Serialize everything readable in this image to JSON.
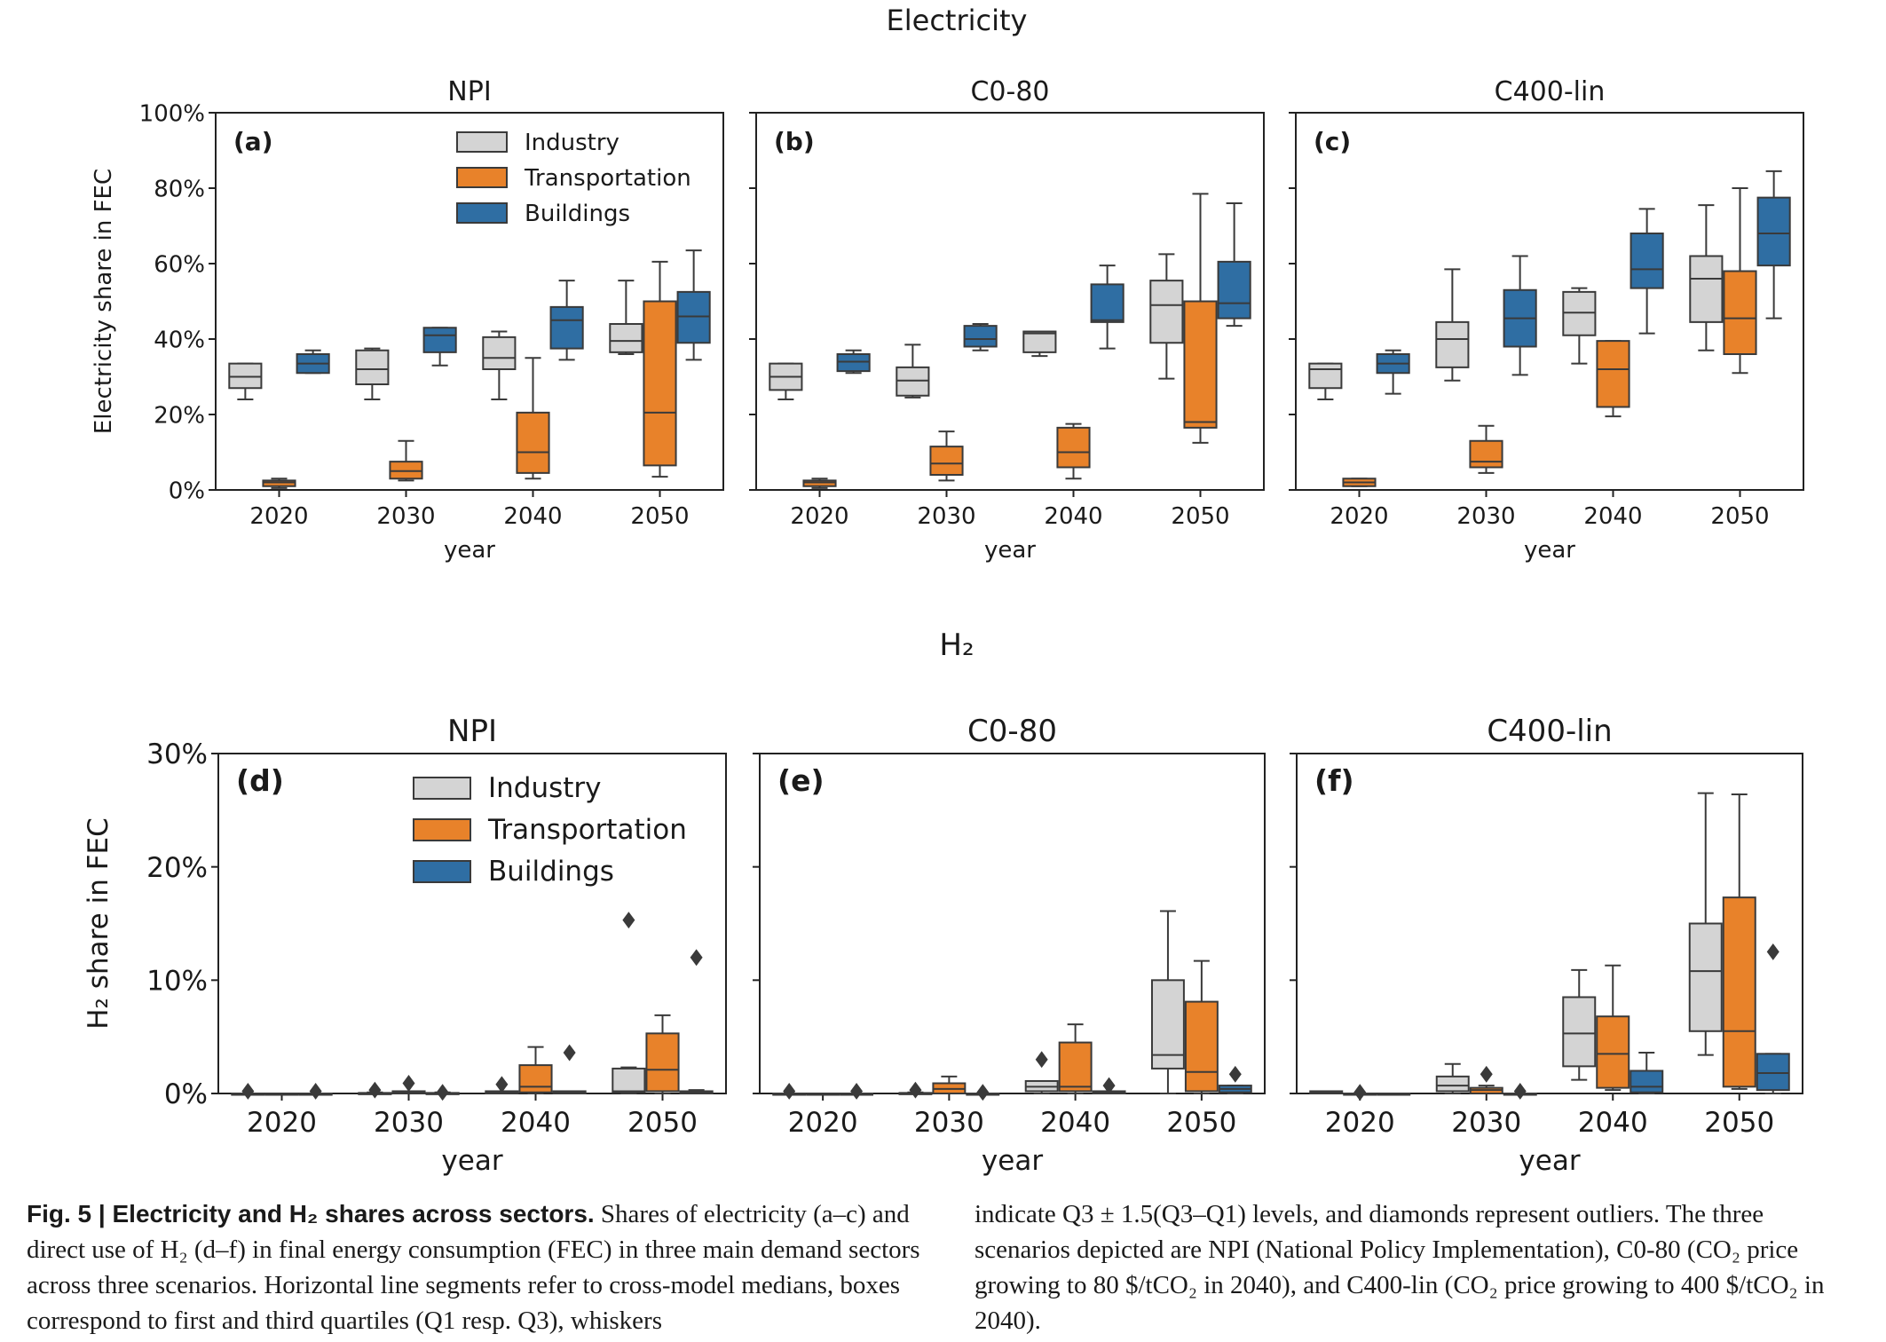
{
  "figure": {
    "top_title": "Electricity",
    "bottom_title": "H₂"
  },
  "legend_entries": [
    "Industry",
    "Transportation",
    "Buildings"
  ],
  "colors": {
    "Industry": "#d4d4d4",
    "Transportation": "#e8822a",
    "Buildings": "#2f6ea3"
  },
  "chart_data": [
    {
      "type": "box",
      "panel": "(a)",
      "title": "NPI",
      "xlabel": "year",
      "ylabel": "Electricity share in FEC",
      "categories": [
        "2020",
        "2030",
        "2040",
        "2050"
      ],
      "ylim": [
        0,
        1
      ],
      "yticks": [
        "0%",
        "20%",
        "40%",
        "60%",
        "80%",
        "100%"
      ],
      "legend": "upper-center",
      "series": [
        {
          "name": "Industry",
          "boxes": [
            {
              "wlo": 0.24,
              "q1": 0.27,
              "med": 0.3,
              "q3": 0.335,
              "whi": 0.335,
              "outliers": []
            },
            {
              "wlo": 0.24,
              "q1": 0.28,
              "med": 0.32,
              "q3": 0.37,
              "whi": 0.375,
              "outliers": []
            },
            {
              "wlo": 0.24,
              "q1": 0.32,
              "med": 0.35,
              "q3": 0.405,
              "whi": 0.42,
              "outliers": []
            },
            {
              "wlo": 0.36,
              "q1": 0.365,
              "med": 0.395,
              "q3": 0.44,
              "whi": 0.555,
              "outliers": []
            }
          ]
        },
        {
          "name": "Transportation",
          "boxes": [
            {
              "wlo": 0.005,
              "q1": 0.01,
              "med": 0.02,
              "q3": 0.025,
              "whi": 0.03,
              "outliers": []
            },
            {
              "wlo": 0.025,
              "q1": 0.03,
              "med": 0.05,
              "q3": 0.075,
              "whi": 0.13,
              "outliers": []
            },
            {
              "wlo": 0.03,
              "q1": 0.045,
              "med": 0.1,
              "q3": 0.205,
              "whi": 0.35,
              "outliers": []
            },
            {
              "wlo": 0.035,
              "q1": 0.065,
              "med": 0.205,
              "q3": 0.5,
              "whi": 0.605,
              "outliers": []
            }
          ]
        },
        {
          "name": "Buildings",
          "boxes": [
            {
              "wlo": 0.31,
              "q1": 0.31,
              "med": 0.335,
              "q3": 0.36,
              "whi": 0.37,
              "outliers": []
            },
            {
              "wlo": 0.33,
              "q1": 0.365,
              "med": 0.41,
              "q3": 0.43,
              "whi": 0.43,
              "outliers": []
            },
            {
              "wlo": 0.345,
              "q1": 0.375,
              "med": 0.45,
              "q3": 0.485,
              "whi": 0.555,
              "outliers": []
            },
            {
              "wlo": 0.345,
              "q1": 0.39,
              "med": 0.46,
              "q3": 0.525,
              "whi": 0.635,
              "outliers": []
            }
          ]
        }
      ]
    },
    {
      "type": "box",
      "panel": "(b)",
      "title": "C0-80",
      "xlabel": "year",
      "categories": [
        "2020",
        "2030",
        "2040",
        "2050"
      ],
      "ylim": [
        0,
        1
      ],
      "series": [
        {
          "name": "Industry",
          "boxes": [
            {
              "wlo": 0.24,
              "q1": 0.265,
              "med": 0.3,
              "q3": 0.335,
              "whi": 0.335,
              "outliers": []
            },
            {
              "wlo": 0.245,
              "q1": 0.25,
              "med": 0.29,
              "q3": 0.325,
              "whi": 0.385,
              "outliers": []
            },
            {
              "wlo": 0.355,
              "q1": 0.365,
              "med": 0.415,
              "q3": 0.42,
              "whi": 0.42,
              "outliers": []
            },
            {
              "wlo": 0.295,
              "q1": 0.39,
              "med": 0.49,
              "q3": 0.555,
              "whi": 0.625,
              "outliers": []
            }
          ]
        },
        {
          "name": "Transportation",
          "boxes": [
            {
              "wlo": 0.005,
              "q1": 0.01,
              "med": 0.02,
              "q3": 0.025,
              "whi": 0.03,
              "outliers": []
            },
            {
              "wlo": 0.025,
              "q1": 0.04,
              "med": 0.07,
              "q3": 0.115,
              "whi": 0.155,
              "outliers": []
            },
            {
              "wlo": 0.03,
              "q1": 0.06,
              "med": 0.1,
              "q3": 0.165,
              "whi": 0.175,
              "outliers": []
            },
            {
              "wlo": 0.125,
              "q1": 0.165,
              "med": 0.18,
              "q3": 0.5,
              "whi": 0.785,
              "outliers": []
            }
          ]
        },
        {
          "name": "Buildings",
          "boxes": [
            {
              "wlo": 0.31,
              "q1": 0.315,
              "med": 0.34,
              "q3": 0.36,
              "whi": 0.37,
              "outliers": []
            },
            {
              "wlo": 0.37,
              "q1": 0.38,
              "med": 0.4,
              "q3": 0.435,
              "whi": 0.44,
              "outliers": []
            },
            {
              "wlo": 0.375,
              "q1": 0.445,
              "med": 0.45,
              "q3": 0.545,
              "whi": 0.595,
              "outliers": []
            },
            {
              "wlo": 0.435,
              "q1": 0.455,
              "med": 0.495,
              "q3": 0.605,
              "whi": 0.76,
              "outliers": []
            }
          ]
        }
      ]
    },
    {
      "type": "box",
      "panel": "(c)",
      "title": "C400-lin",
      "xlabel": "year",
      "categories": [
        "2020",
        "2030",
        "2040",
        "2050"
      ],
      "ylim": [
        0,
        1
      ],
      "series": [
        {
          "name": "Industry",
          "boxes": [
            {
              "wlo": 0.24,
              "q1": 0.27,
              "med": 0.32,
              "q3": 0.335,
              "whi": 0.335,
              "outliers": []
            },
            {
              "wlo": 0.29,
              "q1": 0.325,
              "med": 0.4,
              "q3": 0.445,
              "whi": 0.585,
              "outliers": []
            },
            {
              "wlo": 0.335,
              "q1": 0.41,
              "med": 0.47,
              "q3": 0.525,
              "whi": 0.535,
              "outliers": []
            },
            {
              "wlo": 0.37,
              "q1": 0.445,
              "med": 0.56,
              "q3": 0.62,
              "whi": 0.755,
              "outliers": []
            }
          ]
        },
        {
          "name": "Transportation",
          "boxes": [
            {
              "wlo": 0.01,
              "q1": 0.01,
              "med": 0.02,
              "q3": 0.03,
              "whi": 0.03,
              "outliers": []
            },
            {
              "wlo": 0.045,
              "q1": 0.06,
              "med": 0.075,
              "q3": 0.13,
              "whi": 0.17,
              "outliers": []
            },
            {
              "wlo": 0.195,
              "q1": 0.22,
              "med": 0.32,
              "q3": 0.395,
              "whi": 0.395,
              "outliers": []
            },
            {
              "wlo": 0.31,
              "q1": 0.36,
              "med": 0.455,
              "q3": 0.58,
              "whi": 0.8,
              "outliers": []
            }
          ]
        },
        {
          "name": "Buildings",
          "boxes": [
            {
              "wlo": 0.255,
              "q1": 0.31,
              "med": 0.335,
              "q3": 0.36,
              "whi": 0.37,
              "outliers": []
            },
            {
              "wlo": 0.305,
              "q1": 0.38,
              "med": 0.455,
              "q3": 0.53,
              "whi": 0.62,
              "outliers": []
            },
            {
              "wlo": 0.415,
              "q1": 0.535,
              "med": 0.585,
              "q3": 0.68,
              "whi": 0.745,
              "outliers": []
            },
            {
              "wlo": 0.455,
              "q1": 0.595,
              "med": 0.68,
              "q3": 0.775,
              "whi": 0.845,
              "outliers": []
            }
          ]
        }
      ]
    },
    {
      "type": "box",
      "panel": "(d)",
      "title": "NPI",
      "xlabel": "year",
      "ylabel": "H₂ share in FEC",
      "categories": [
        "2020",
        "2030",
        "2040",
        "2050"
      ],
      "ylim": [
        0,
        0.3
      ],
      "yticks": [
        "0%",
        "10%",
        "20%",
        "30%"
      ],
      "legend": "upper-center",
      "series": [
        {
          "name": "Industry",
          "boxes": [
            {
              "wlo": 0,
              "q1": 0,
              "med": 0,
              "q3": 0,
              "whi": 0,
              "outliers": [
                0.002
              ]
            },
            {
              "wlo": 0,
              "q1": 0,
              "med": 0,
              "q3": 0.0005,
              "whi": 0.001,
              "outliers": [
                0.003
              ]
            },
            {
              "wlo": 0,
              "q1": 0,
              "med": 0.001,
              "q3": 0.002,
              "whi": 0.002,
              "outliers": [
                0.008
              ]
            },
            {
              "wlo": 0,
              "q1": 0.001,
              "med": 0.002,
              "q3": 0.022,
              "whi": 0.023,
              "outliers": [
                0.153
              ]
            }
          ]
        },
        {
          "name": "Transportation",
          "boxes": [
            {
              "wlo": 0,
              "q1": 0,
              "med": 0,
              "q3": 0,
              "whi": 0,
              "outliers": []
            },
            {
              "wlo": 0,
              "q1": 0,
              "med": 0.001,
              "q3": 0.002,
              "whi": 0.002,
              "outliers": [
                0.009
              ]
            },
            {
              "wlo": 0,
              "q1": 0.001,
              "med": 0.006,
              "q3": 0.025,
              "whi": 0.041,
              "outliers": []
            },
            {
              "wlo": 0,
              "q1": 0.002,
              "med": 0.021,
              "q3": 0.053,
              "whi": 0.069,
              "outliers": []
            }
          ]
        },
        {
          "name": "Buildings",
          "boxes": [
            {
              "wlo": 0,
              "q1": 0,
              "med": 0,
              "q3": 0,
              "whi": 0,
              "outliers": [
                0.002
              ]
            },
            {
              "wlo": 0,
              "q1": 0,
              "med": 0,
              "q3": 0.0005,
              "whi": 0.001,
              "outliers": [
                0.001
              ]
            },
            {
              "wlo": 0,
              "q1": 0,
              "med": 0.001,
              "q3": 0.002,
              "whi": 0.002,
              "outliers": [
                0.036
              ]
            },
            {
              "wlo": 0,
              "q1": 0,
              "med": 0.001,
              "q3": 0.002,
              "whi": 0.003,
              "outliers": [
                0.12
              ]
            }
          ]
        }
      ]
    },
    {
      "type": "box",
      "panel": "(e)",
      "title": "C0-80",
      "xlabel": "year",
      "categories": [
        "2020",
        "2030",
        "2040",
        "2050"
      ],
      "ylim": [
        0,
        0.3
      ],
      "series": [
        {
          "name": "Industry",
          "boxes": [
            {
              "wlo": 0,
              "q1": 0,
              "med": 0,
              "q3": 0,
              "whi": 0,
              "outliers": [
                0.002
              ]
            },
            {
              "wlo": 0,
              "q1": 0,
              "med": 0,
              "q3": 0.0005,
              "whi": 0.001,
              "outliers": [
                0.003
              ]
            },
            {
              "wlo": 0,
              "q1": 0.002,
              "med": 0.006,
              "q3": 0.011,
              "whi": 0.011,
              "outliers": [
                0.03
              ]
            },
            {
              "wlo": 0,
              "q1": 0.022,
              "med": 0.034,
              "q3": 0.1,
              "whi": 0.161,
              "outliers": []
            }
          ]
        },
        {
          "name": "Transportation",
          "boxes": [
            {
              "wlo": 0,
              "q1": 0,
              "med": 0,
              "q3": 0,
              "whi": 0,
              "outliers": []
            },
            {
              "wlo": 0,
              "q1": 0,
              "med": 0.004,
              "q3": 0.009,
              "whi": 0.015,
              "outliers": []
            },
            {
              "wlo": 0,
              "q1": 0.002,
              "med": 0.006,
              "q3": 0.045,
              "whi": 0.061,
              "outliers": []
            },
            {
              "wlo": 0,
              "q1": 0.002,
              "med": 0.019,
              "q3": 0.081,
              "whi": 0.117,
              "outliers": []
            }
          ]
        },
        {
          "name": "Buildings",
          "boxes": [
            {
              "wlo": 0,
              "q1": 0,
              "med": 0,
              "q3": 0,
              "whi": 0,
              "outliers": [
                0.002
              ]
            },
            {
              "wlo": 0,
              "q1": 0,
              "med": 0,
              "q3": 0,
              "whi": 0,
              "outliers": [
                0.001
              ]
            },
            {
              "wlo": 0,
              "q1": 0,
              "med": 0.001,
              "q3": 0.002,
              "whi": 0.002,
              "outliers": [
                0.007
              ]
            },
            {
              "wlo": 0,
              "q1": 0.001,
              "med": 0.004,
              "q3": 0.007,
              "whi": 0.007,
              "outliers": [
                0.017
              ]
            }
          ]
        }
      ]
    },
    {
      "type": "box",
      "panel": "(f)",
      "title": "C400-lin",
      "xlabel": "year",
      "categories": [
        "2020",
        "2030",
        "2040",
        "2050"
      ],
      "ylim": [
        0,
        0.3
      ],
      "series": [
        {
          "name": "Industry",
          "boxes": [
            {
              "wlo": 0,
              "q1": 0,
              "med": 0.001,
              "q3": 0.002,
              "whi": 0.002,
              "outliers": []
            },
            {
              "wlo": 0,
              "q1": 0.002,
              "med": 0.007,
              "q3": 0.015,
              "whi": 0.026,
              "outliers": []
            },
            {
              "wlo": 0.012,
              "q1": 0.024,
              "med": 0.053,
              "q3": 0.085,
              "whi": 0.109,
              "outliers": []
            },
            {
              "wlo": 0.034,
              "q1": 0.055,
              "med": 0.108,
              "q3": 0.15,
              "whi": 0.265,
              "outliers": []
            }
          ]
        },
        {
          "name": "Transportation",
          "boxes": [
            {
              "wlo": 0,
              "q1": 0,
              "med": 0,
              "q3": 0,
              "whi": 0,
              "outliers": [
                0.001
              ]
            },
            {
              "wlo": 0,
              "q1": 0,
              "med": 0.003,
              "q3": 0.005,
              "whi": 0.007,
              "outliers": [
                0.017
              ]
            },
            {
              "wlo": 0.003,
              "q1": 0.005,
              "med": 0.035,
              "q3": 0.068,
              "whi": 0.113,
              "outliers": []
            },
            {
              "wlo": 0.004,
              "q1": 0.006,
              "med": 0.055,
              "q3": 0.173,
              "whi": 0.264,
              "outliers": []
            }
          ]
        },
        {
          "name": "Buildings",
          "boxes": [
            {
              "wlo": 0,
              "q1": 0,
              "med": 0,
              "q3": 0,
              "whi": 0,
              "outliers": []
            },
            {
              "wlo": 0,
              "q1": 0,
              "med": 0,
              "q3": 0,
              "whi": 0,
              "outliers": [
                0.002
              ]
            },
            {
              "wlo": 0,
              "q1": 0.001,
              "med": 0.006,
              "q3": 0.02,
              "whi": 0.036,
              "outliers": []
            },
            {
              "wlo": 0,
              "q1": 0.003,
              "med": 0.018,
              "q3": 0.035,
              "whi": 0.035,
              "outliers": [
                0.125
              ]
            }
          ]
        }
      ]
    }
  ],
  "caption": {
    "label": "Fig. 5 | Electricity and H₂ shares across sectors.",
    "left": " Shares of electricity (a–c) and direct use of H₂ (d–f) in final energy consumption (FEC) in three main demand sectors across three scenarios. Horizontal line segments refer to cross-model medians, boxes correspond to first and third quartiles (Q1 resp. Q3), whiskers",
    "right": "indicate Q3 ± 1.5(Q3–Q1) levels, and diamonds represent outliers. The three scenarios depicted are NPI (National Policy Implementation), C0-80 (CO₂ price growing to 80 $/tCO₂ in 2040), and C400-lin (CO₂ price growing to 400 $/tCO₂ in 2040)."
  }
}
